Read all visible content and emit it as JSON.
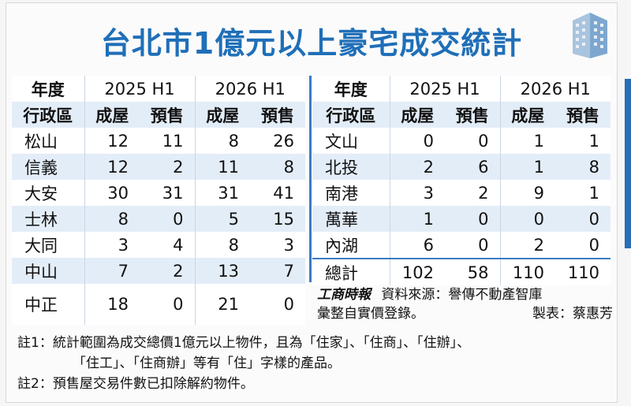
{
  "title": "台北市1億元以上豪宅成交統計",
  "header": {
    "year_label": "年度",
    "district_label": "行政區",
    "period_a": "2025 H1",
    "period_b": "2026  H1",
    "type_existing": "成屋",
    "type_presale": "預售"
  },
  "left_rows": [
    {
      "district": "松山",
      "a_existing": "12",
      "a_presale": "11",
      "b_existing": "8",
      "b_presale": "26"
    },
    {
      "district": "信義",
      "a_existing": "12",
      "a_presale": "2",
      "b_existing": "11",
      "b_presale": "8"
    },
    {
      "district": "大安",
      "a_existing": "30",
      "a_presale": "31",
      "b_existing": "31",
      "b_presale": "41"
    },
    {
      "district": "士林",
      "a_existing": "8",
      "a_presale": "0",
      "b_existing": "5",
      "b_presale": "15"
    },
    {
      "district": "大同",
      "a_existing": "3",
      "a_presale": "4",
      "b_existing": "8",
      "b_presale": "3"
    },
    {
      "district": "中山",
      "a_existing": "7",
      "a_presale": "2",
      "b_existing": "13",
      "b_presale": "7"
    },
    {
      "district": "中正",
      "a_existing": "18",
      "a_presale": "0",
      "b_existing": "21",
      "b_presale": "0"
    }
  ],
  "right_rows": [
    {
      "district": "文山",
      "a_existing": "0",
      "a_presale": "0",
      "b_existing": "1",
      "b_presale": "1"
    },
    {
      "district": "北投",
      "a_existing": "2",
      "a_presale": "6",
      "b_existing": "1",
      "b_presale": "8"
    },
    {
      "district": "南港",
      "a_existing": "3",
      "a_presale": "2",
      "b_existing": "9",
      "b_presale": "1"
    },
    {
      "district": "萬華",
      "a_existing": "1",
      "a_presale": "0",
      "b_existing": "0",
      "b_presale": "0"
    },
    {
      "district": "內湖",
      "a_existing": "6",
      "a_presale": "0",
      "b_existing": "2",
      "b_presale": "0"
    }
  ],
  "total": {
    "label": "總計",
    "a_existing": "102",
    "a_presale": "58",
    "b_existing": "110",
    "b_presale": "110"
  },
  "credit": {
    "logo": "工商時報",
    "source": "資料來源：譽傳不動產智庫",
    "compiled": "彙整自實價登錄。",
    "author": "製表：蔡惠芳"
  },
  "notes": {
    "note1_line1": "註1：統計範圍為成交總價1億元以上物件，且為「住家」、「住商」、「住辦」、",
    "note1_line2": "「住工」、「住商辦」等有「住」字樣的產品。",
    "note2": "註2：預售屋交易件數已扣除解約物件。"
  },
  "colors": {
    "title": "#1f6fb8",
    "shade": "#e3edf8",
    "rule": "#3a7cc5"
  }
}
